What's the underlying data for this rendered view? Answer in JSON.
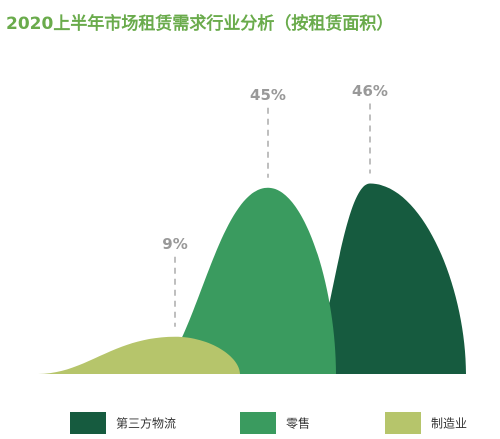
{
  "chart_data": {
    "type": "mountain",
    "title": "2020上半年市场租赁需求行业分析（按租赁面积）",
    "categories": [
      "第三方物流",
      "零售",
      "制造业"
    ],
    "values": [
      46,
      45,
      9
    ],
    "value_labels": [
      "46%",
      "45%",
      "9%"
    ],
    "colors": [
      "#165b3f",
      "#3a9b5f",
      "#b6c56b"
    ],
    "ylim": [
      0,
      50
    ]
  }
}
